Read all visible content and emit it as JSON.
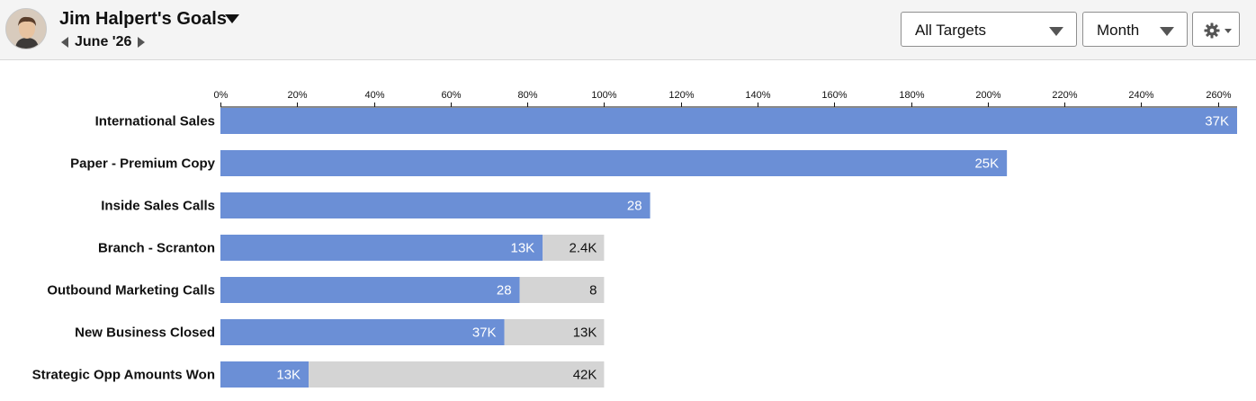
{
  "header": {
    "title": "Jim Halpert's Goals",
    "period": "June '26",
    "avatar_icon": "user-avatar",
    "targets_select": {
      "selected": "All Targets"
    },
    "timeframe_select": {
      "selected": "Month"
    },
    "settings_icon": "gear-icon"
  },
  "colors": {
    "achieved": "#6b8fd6",
    "remaining": "#d4d4d4",
    "header_bg": "#f4f4f4"
  },
  "chart_data": {
    "type": "bar",
    "orientation": "horizontal",
    "stacked": true,
    "xlim": [
      0,
      265
    ],
    "x_unit": "%",
    "tick_values": [
      0,
      20,
      40,
      60,
      80,
      100,
      120,
      140,
      160,
      180,
      200,
      220,
      240,
      260
    ],
    "tick_labels": [
      "0%",
      "20%",
      "40%",
      "60%",
      "80%",
      "100%",
      "120%",
      "140%",
      "160%",
      "180%",
      "200%",
      "220%",
      "240%",
      "260%"
    ],
    "grid": false,
    "categories": [
      "International Sales",
      "Paper - Premium Copy",
      "Inside Sales Calls",
      "Branch - Scranton",
      "Outbound Marketing Calls",
      "New Business Closed",
      "Strategic Opp Amounts Won"
    ],
    "series": [
      {
        "values": [
          265,
          205,
          112,
          84,
          78,
          74,
          23
        ],
        "labels": [
          "37K",
          "25K",
          "28",
          "13K",
          "28",
          "37K",
          "13K"
        ]
      },
      {
        "values": [
          0,
          0,
          0,
          16,
          22,
          26,
          77
        ],
        "labels": [
          "",
          "",
          "",
          "2.4K",
          "8",
          "13K",
          "42K"
        ]
      }
    ]
  }
}
